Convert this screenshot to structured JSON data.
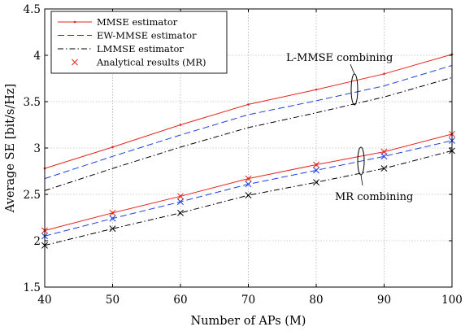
{
  "chart_data": {
    "type": "line",
    "title": "",
    "xlabel": "Number of APs (M)",
    "ylabel": "Average SE [bit/s/Hz]",
    "xlim": [
      40,
      100
    ],
    "ylim": [
      1.5,
      4.5
    ],
    "xticks": [
      40,
      50,
      60,
      70,
      80,
      90,
      100
    ],
    "yticks": [
      1.5,
      2,
      2.5,
      3,
      3.5,
      4,
      4.5
    ],
    "xtick_labels": [
      "40",
      "50",
      "60",
      "70",
      "80",
      "90",
      "100"
    ],
    "ytick_labels": [
      "1.5",
      "2",
      "2.5",
      "3",
      "3.5",
      "4",
      "4.5"
    ],
    "grid": true,
    "legend_position": "top-left",
    "x": [
      40,
      50,
      60,
      70,
      80,
      90,
      100
    ],
    "series": [
      {
        "name": "MMSE estimator",
        "group": "L-MMSE combining",
        "color": "#e8231e",
        "style": "solid",
        "marker": "dot",
        "values": [
          2.78,
          3.01,
          3.25,
          3.47,
          3.63,
          3.8,
          4.01
        ]
      },
      {
        "name": "EW-MMSE estimator",
        "group": "L-MMSE combining",
        "color": "#1f3fe0",
        "style": "dashed",
        "marker": "none",
        "values": [
          2.67,
          2.91,
          3.14,
          3.36,
          3.51,
          3.67,
          3.89
        ]
      },
      {
        "name": "LMMSE estimator",
        "group": "L-MMSE combining",
        "color": "#000000",
        "style": "dashdot",
        "marker": "none",
        "values": [
          2.54,
          2.78,
          3.01,
          3.22,
          3.38,
          3.55,
          3.76
        ]
      },
      {
        "name": "MMSE estimator",
        "group": "MR combining",
        "color": "#e8231e",
        "style": "solid",
        "marker": "dot",
        "values": [
          2.11,
          2.3,
          2.48,
          2.67,
          2.82,
          2.96,
          3.15
        ]
      },
      {
        "name": "EW-MMSE estimator",
        "group": "MR combining",
        "color": "#1f3fe0",
        "style": "dashed",
        "marker": "none",
        "values": [
          2.05,
          2.24,
          2.42,
          2.61,
          2.76,
          2.91,
          3.08
        ]
      },
      {
        "name": "LMMSE estimator",
        "group": "MR combining",
        "color": "#000000",
        "style": "dashdot",
        "marker": "none",
        "values": [
          1.95,
          2.13,
          2.3,
          2.49,
          2.63,
          2.78,
          2.97
        ]
      }
    ],
    "analytical_results": [
      {
        "name": "Analytical results (MR)",
        "color": "#e8231e",
        "marker": "x",
        "values": [
          2.11,
          2.3,
          2.48,
          2.67,
          2.82,
          2.96,
          3.15
        ]
      },
      {
        "name": "Analytical results (MR)",
        "color": "#1f3fe0",
        "marker": "x",
        "values": [
          2.05,
          2.24,
          2.42,
          2.61,
          2.76,
          2.91,
          3.08
        ]
      },
      {
        "name": "Analytical results (MR)",
        "color": "#000000",
        "marker": "x",
        "values": [
          1.95,
          2.13,
          2.3,
          2.49,
          2.63,
          2.78,
          2.97
        ]
      }
    ],
    "legend": [
      {
        "label": "MMSE estimator",
        "color": "#e8231e",
        "style": "solid",
        "marker": "dot"
      },
      {
        "label": "EW-MMSE estimator",
        "color": "#1f3fe0",
        "style": "dashed",
        "marker": "none"
      },
      {
        "label": "LMMSE estimator",
        "color": "#000000",
        "style": "dashdot",
        "marker": "none"
      },
      {
        "label": "Analytical results (MR)",
        "color": "#e8231e",
        "style": "none",
        "marker": "x"
      }
    ],
    "annotations": [
      {
        "text": "L-MMSE combining",
        "near_x": 85.5,
        "near_y": 3.65
      },
      {
        "text": "MR combining",
        "near_x": 86,
        "near_y": 2.75
      }
    ]
  }
}
